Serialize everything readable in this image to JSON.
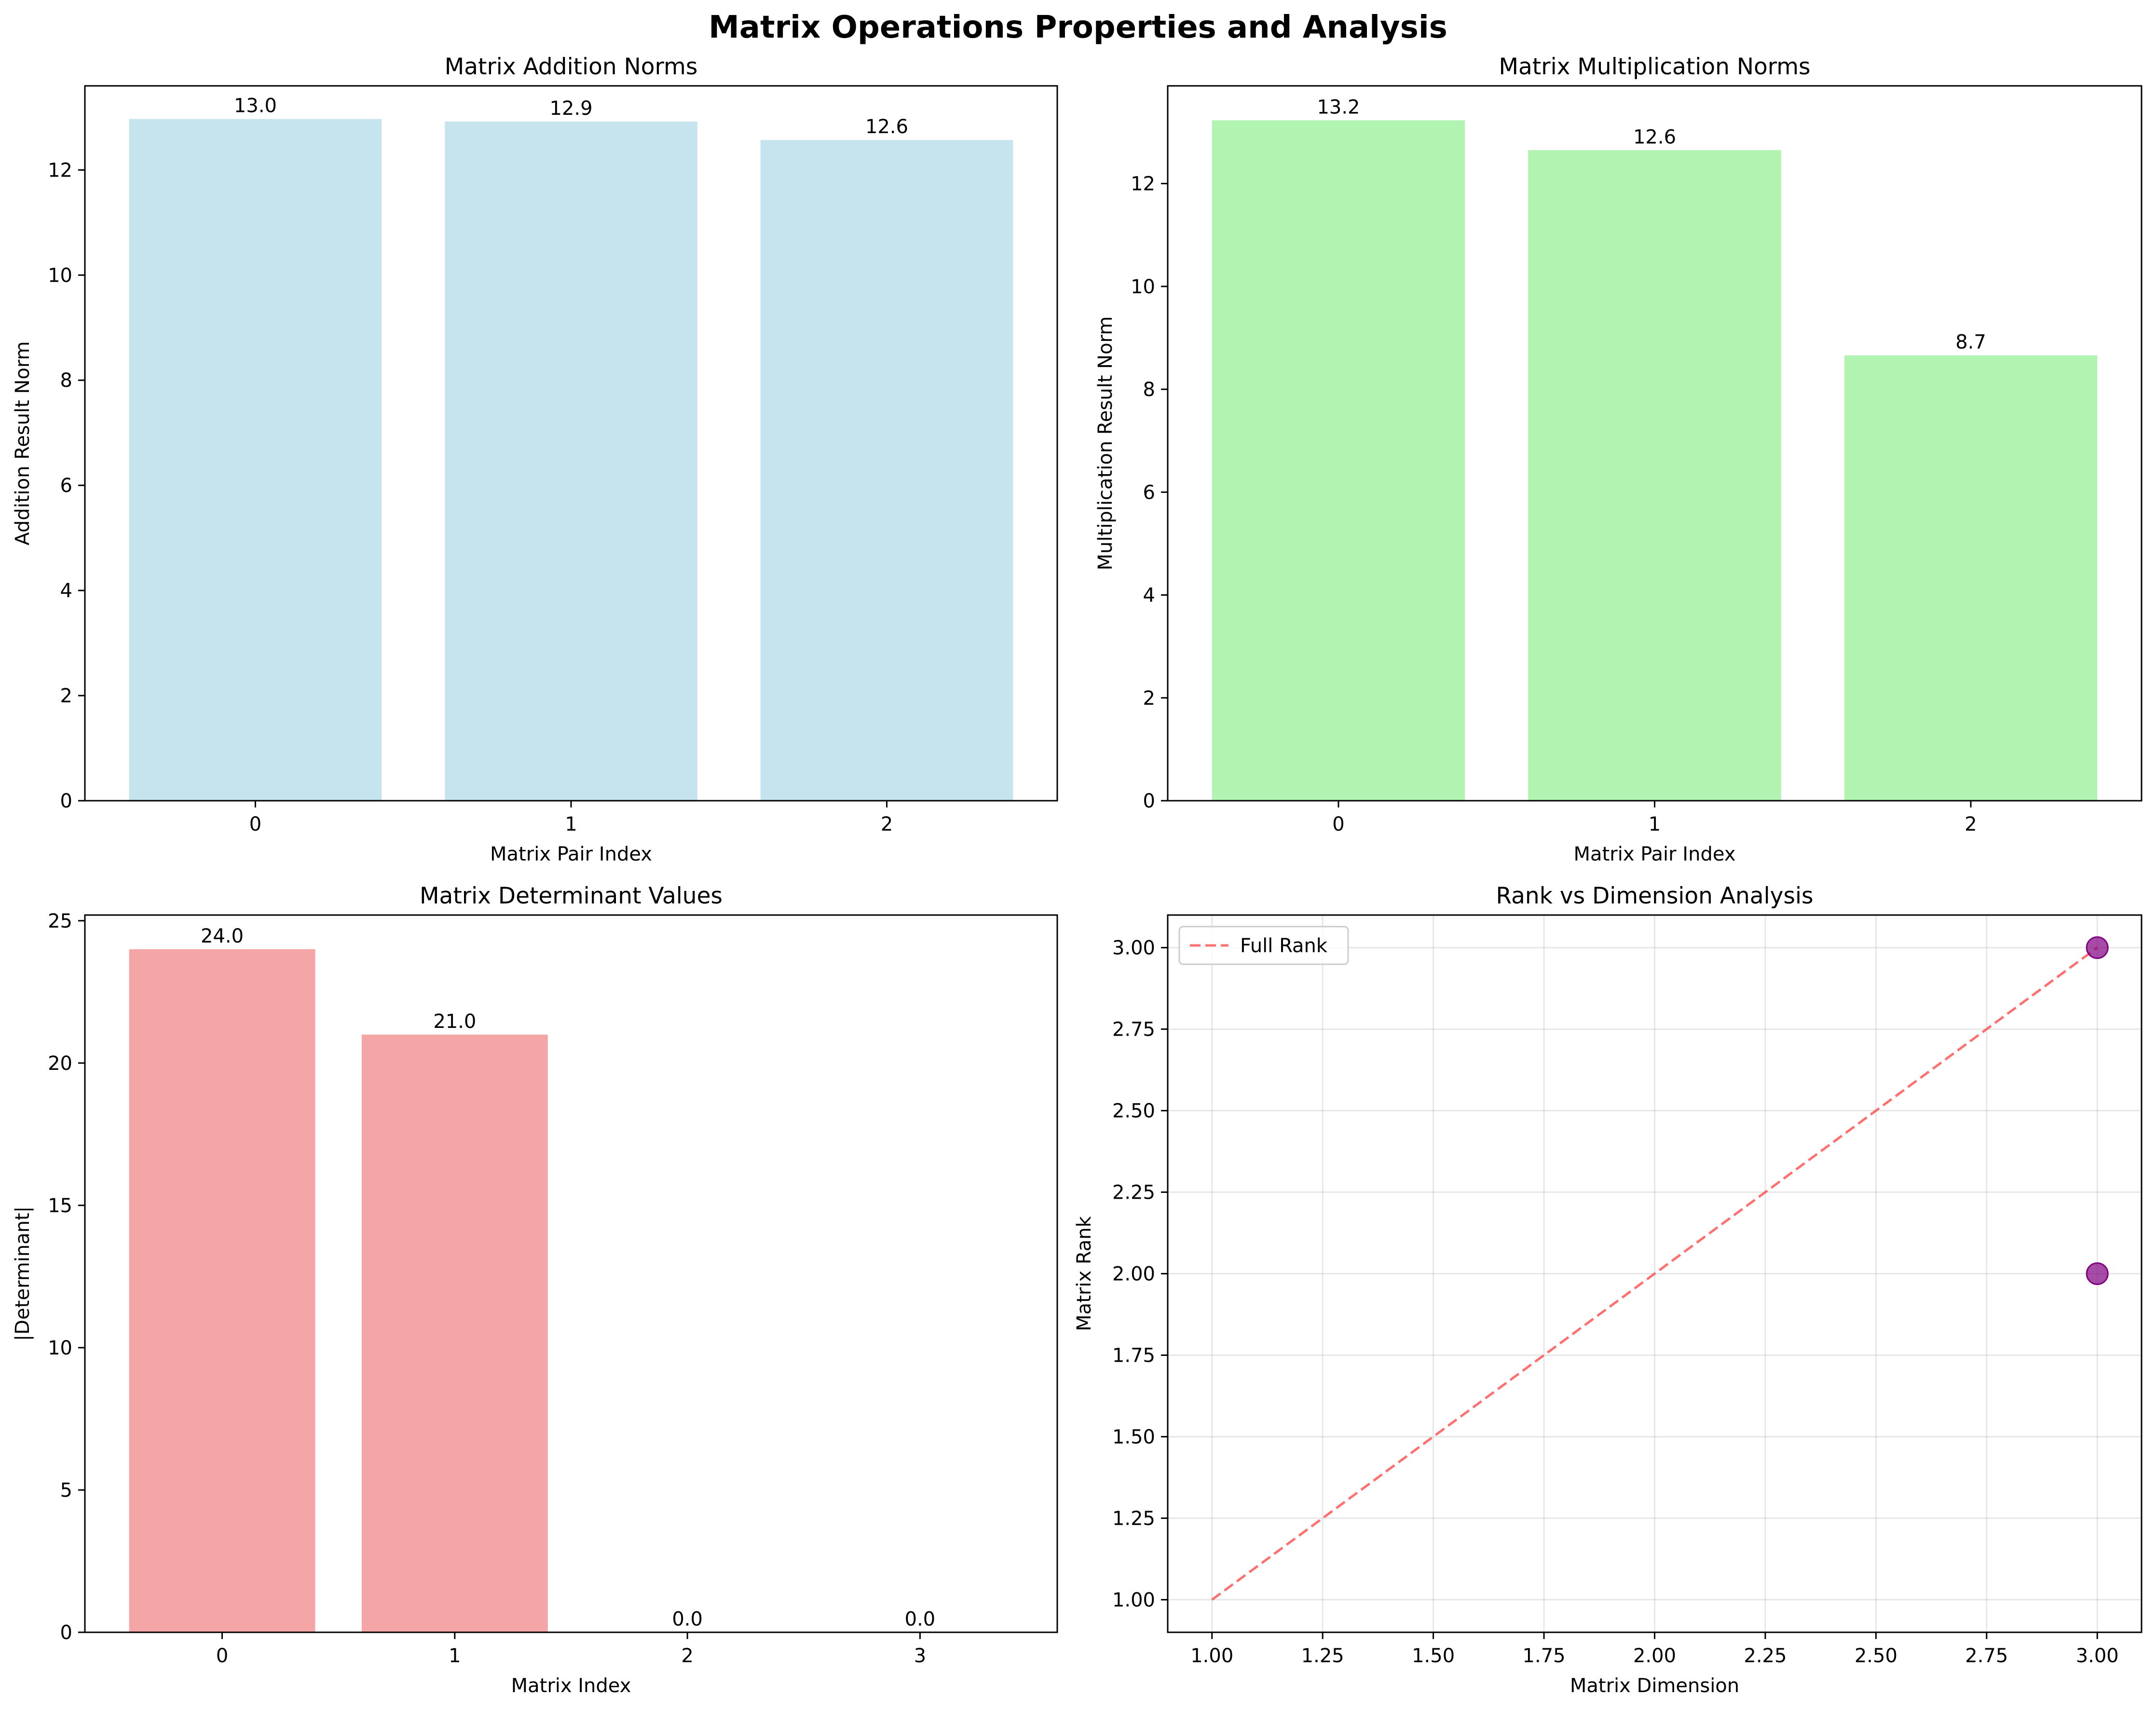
{
  "figure": {
    "title": "Matrix Operations Properties and Analysis"
  },
  "chart_data": [
    {
      "id": "addition",
      "type": "bar",
      "title": "Matrix Addition Norms",
      "xlabel": "Matrix Pair Index",
      "ylabel": "Addition Result Norm",
      "categories": [
        "0",
        "1",
        "2"
      ],
      "values": [
        12.97,
        12.92,
        12.57
      ],
      "value_labels": [
        "13.0",
        "12.9",
        "12.6"
      ],
      "ylim": [
        0,
        13.6
      ],
      "yticks": [
        0,
        2,
        4,
        6,
        8,
        10,
        12
      ],
      "ytick_labels": [
        "0",
        "2",
        "4",
        "6",
        "8",
        "10",
        "12"
      ],
      "color": "#add8e6",
      "grid": false
    },
    {
      "id": "multiplication",
      "type": "bar",
      "title": "Matrix Multiplication Norms",
      "xlabel": "Matrix Pair Index",
      "ylabel": "Multiplication Result Norm",
      "categories": [
        "0",
        "1",
        "2"
      ],
      "values": [
        13.23,
        12.65,
        8.66
      ],
      "value_labels": [
        "13.2",
        "12.6",
        "8.7"
      ],
      "ylim": [
        0,
        13.9
      ],
      "yticks": [
        0,
        2,
        4,
        6,
        8,
        10,
        12
      ],
      "ytick_labels": [
        "0",
        "2",
        "4",
        "6",
        "8",
        "10",
        "12"
      ],
      "color": "#90ee90",
      "grid": false
    },
    {
      "id": "determinant",
      "type": "bar",
      "title": "Matrix Determinant Values",
      "xlabel": "Matrix Index",
      "ylabel": "|Determinant|",
      "categories": [
        "0",
        "1",
        "2",
        "3"
      ],
      "values": [
        24.0,
        21.0,
        0.0,
        0.0
      ],
      "value_labels": [
        "24.0",
        "21.0",
        "0.0",
        "0.0"
      ],
      "ylim": [
        0,
        25.2
      ],
      "yticks": [
        0,
        5,
        10,
        15,
        20,
        25
      ],
      "ytick_labels": [
        "0",
        "5",
        "10",
        "15",
        "20",
        "25"
      ],
      "color": "#f08080",
      "grid": false
    },
    {
      "id": "rank",
      "type": "scatter",
      "title": "Rank vs Dimension Analysis",
      "xlabel": "Matrix Dimension",
      "ylabel": "Matrix Rank",
      "points": [
        {
          "x": 3,
          "y": 3
        },
        {
          "x": 3,
          "y": 2
        }
      ],
      "point_color": "#800080",
      "reference_line": {
        "name": "Full Rank",
        "x": [
          1,
          3
        ],
        "y": [
          1,
          3
        ],
        "color": "#ff4d4d",
        "style": "dashed"
      },
      "xlim": [
        0.9,
        3.1
      ],
      "ylim": [
        0.9,
        3.1
      ],
      "xticks": [
        1.0,
        1.25,
        1.5,
        1.75,
        2.0,
        2.25,
        2.5,
        2.75,
        3.0
      ],
      "xtick_labels": [
        "1.00",
        "1.25",
        "1.50",
        "1.75",
        "2.00",
        "2.25",
        "2.50",
        "2.75",
        "3.00"
      ],
      "yticks": [
        1.0,
        1.25,
        1.5,
        1.75,
        2.0,
        2.25,
        2.5,
        2.75,
        3.0
      ],
      "ytick_labels": [
        "1.00",
        "1.25",
        "1.50",
        "1.75",
        "2.00",
        "2.25",
        "2.50",
        "2.75",
        "3.00"
      ],
      "grid": true,
      "legend": {
        "position": "top-left",
        "entries": [
          "Full Rank"
        ]
      }
    }
  ]
}
